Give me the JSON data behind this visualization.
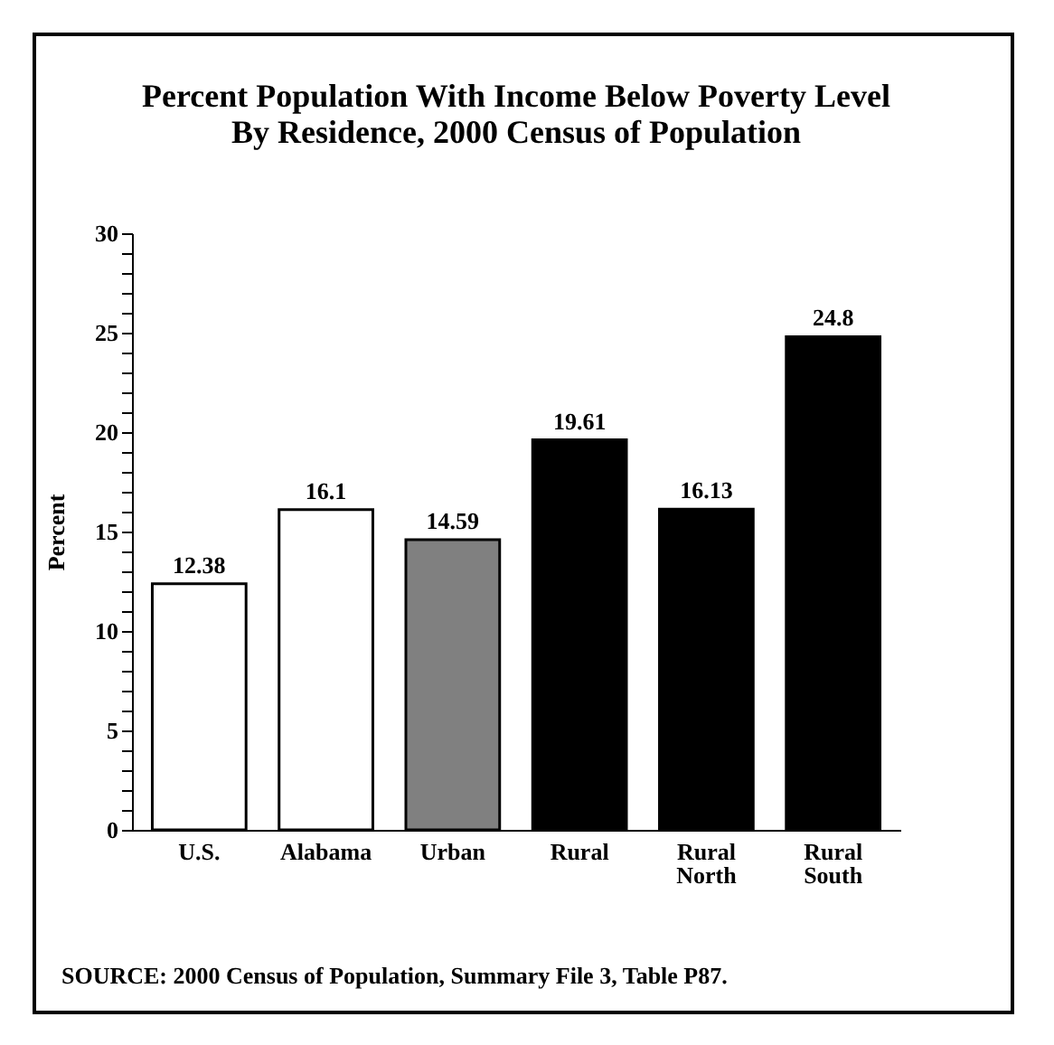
{
  "chart_data": {
    "type": "bar",
    "title": "Percent Population With Income Below Poverty Level\nBy Residence, 2000 Census of Population",
    "ylabel": "Percent",
    "categories": [
      "U.S.",
      "Alabama",
      "Urban",
      "Rural",
      "Rural North",
      "Rural South"
    ],
    "values": [
      12.38,
      16.1,
      14.59,
      19.61,
      16.13,
      24.8
    ],
    "colors": [
      "#ffffff",
      "#ffffff",
      "#808080",
      "#000000",
      "#000000",
      "#000000"
    ],
    "data_labels": true,
    "grid": false,
    "ylim": [
      0,
      30
    ],
    "yticks": [
      0,
      {
        "value": 1,
        "label": null
      },
      {
        "value": 2,
        "label": null
      },
      {
        "value": 3,
        "label": null
      },
      {
        "value": 4,
        "label": null
      },
      5,
      {
        "value": 6,
        "label": null
      },
      {
        "value": 7,
        "label": null
      },
      {
        "value": 8,
        "label": null
      },
      {
        "value": 9,
        "label": null
      },
      10,
      {
        "value": 11,
        "label": null
      },
      {
        "value": 12,
        "label": null
      },
      {
        "value": 13,
        "label": null
      },
      {
        "value": 14,
        "label": null
      },
      15,
      {
        "value": 16,
        "label": null
      },
      {
        "value": 17,
        "label": null
      },
      {
        "value": 18,
        "label": null
      },
      {
        "value": 19,
        "label": null
      },
      20,
      {
        "value": 21,
        "label": null
      },
      {
        "value": 22,
        "label": null
      },
      {
        "value": 23,
        "label": null
      },
      {
        "value": 24,
        "label": null
      },
      25,
      {
        "value": 26,
        "label": null
      },
      {
        "value": 27,
        "label": null
      },
      {
        "value": 28,
        "label": null
      },
      {
        "value": 29,
        "label": null
      },
      30
    ],
    "annotations": [
      "SOURCE: 2000 Census of Population, Summary File 3, Table P87."
    ]
  }
}
